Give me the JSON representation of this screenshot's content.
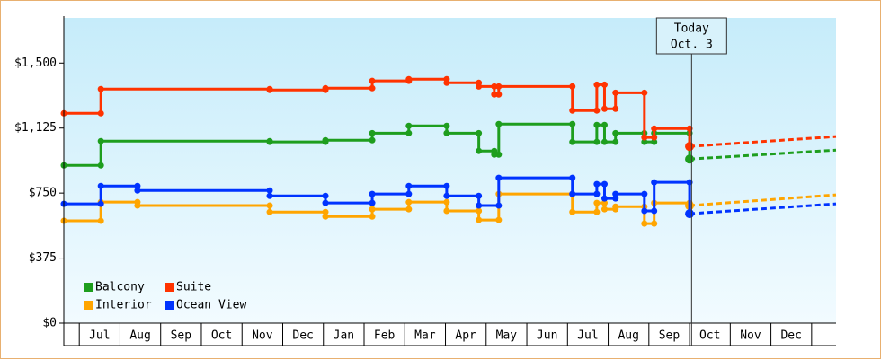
{
  "chart_data": {
    "type": "step",
    "ylim": [
      0,
      1750
    ],
    "yticks": [
      {
        "value": 0,
        "label": "$0"
      },
      {
        "value": 375,
        "label": "$375"
      },
      {
        "value": 750,
        "label": "$750"
      },
      {
        "value": 1125,
        "label": "$1,125"
      },
      {
        "value": 1500,
        "label": "$1,500"
      }
    ],
    "xlim": [
      -0.38,
      18.6
    ],
    "xticks": [
      {
        "value": 0.5,
        "label": "Jul"
      },
      {
        "value": 1.5,
        "label": "Aug"
      },
      {
        "value": 2.5,
        "label": "Sep"
      },
      {
        "value": 3.5,
        "label": "Oct"
      },
      {
        "value": 4.5,
        "label": "Nov"
      },
      {
        "value": 5.5,
        "label": "Dec"
      },
      {
        "value": 6.5,
        "label": "Jan"
      },
      {
        "value": 7.5,
        "label": "Feb"
      },
      {
        "value": 8.5,
        "label": "Mar"
      },
      {
        "value": 9.5,
        "label": "Apr"
      },
      {
        "value": 10.5,
        "label": "May"
      },
      {
        "value": 11.5,
        "label": "Jun"
      },
      {
        "value": 12.5,
        "label": "Jul"
      },
      {
        "value": 13.5,
        "label": "Aug"
      },
      {
        "value": 14.5,
        "label": "Sep"
      },
      {
        "value": 15.5,
        "label": "Oct"
      },
      {
        "value": 16.5,
        "label": "Nov"
      },
      {
        "value": 17.5,
        "label": "Dec"
      }
    ],
    "today": {
      "x": 15.05,
      "label": [
        "Today",
        "Oct. 3"
      ]
    },
    "forecast_x": [
      15.0,
      18.6
    ],
    "series": [
      {
        "name": "Balcony",
        "color": "#1e9e1e",
        "x": [
          -0.38,
          0.53,
          4.68,
          6.05,
          7.2,
          8.1,
          9.03,
          9.82,
          10.2,
          10.31,
          12.12,
          12.72,
          12.91,
          13.18,
          13.89,
          14.13,
          15.0
        ],
        "values": [
          910,
          1050,
          1045,
          1055,
          1096,
          1138,
          1096,
          993,
          972,
          1148,
          1045,
          1143,
          1045,
          1096,
          1045,
          1096,
          946
        ],
        "forecast": [
          946,
          998
        ]
      },
      {
        "name": "Suite",
        "color": "#ff3300",
        "x": [
          -0.38,
          0.53,
          4.68,
          6.05,
          7.2,
          8.1,
          9.03,
          9.82,
          10.2,
          10.31,
          12.12,
          12.72,
          12.91,
          13.18,
          13.89,
          14.13,
          15.0
        ],
        "values": [
          1210,
          1350,
          1345,
          1355,
          1397,
          1407,
          1386,
          1365,
          1319,
          1365,
          1226,
          1375,
          1236,
          1329,
          1071,
          1122,
          1019
        ],
        "forecast": [
          1019,
          1076
        ]
      },
      {
        "name": "Interior",
        "color": "#ffa500",
        "x": [
          -0.38,
          0.53,
          1.43,
          4.68,
          6.05,
          7.2,
          8.1,
          9.03,
          9.82,
          10.31,
          12.12,
          12.72,
          12.91,
          13.18,
          13.89,
          14.13,
          15.0
        ],
        "values": [
          590,
          698,
          678,
          641,
          615,
          657,
          698,
          647,
          595,
          745,
          641,
          693,
          657,
          672,
          574,
          693,
          678
        ],
        "forecast": [
          678,
          740
        ]
      },
      {
        "name": "Ocean View",
        "color": "#0033ff",
        "x": [
          -0.38,
          0.53,
          1.43,
          4.68,
          6.05,
          7.2,
          8.1,
          9.03,
          9.82,
          10.31,
          12.12,
          12.72,
          12.91,
          13.18,
          13.89,
          14.13,
          15.0
        ],
        "values": [
          688,
          791,
          765,
          734,
          693,
          745,
          791,
          734,
          678,
          838,
          745,
          802,
          719,
          745,
          647,
          812,
          631
        ],
        "forecast": [
          631,
          688
        ]
      }
    ]
  }
}
